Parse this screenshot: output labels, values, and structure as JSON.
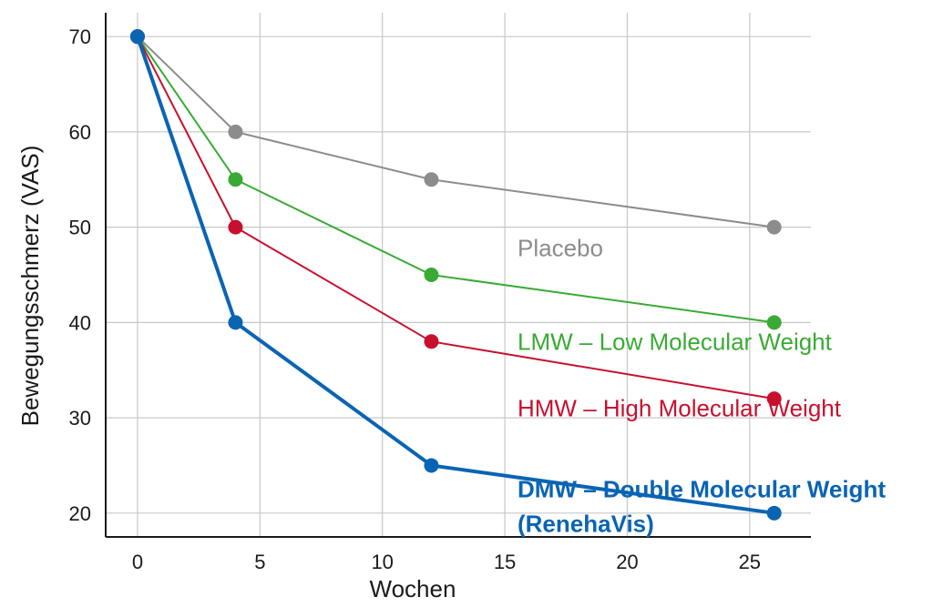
{
  "chart_data": {
    "type": "line",
    "title": "",
    "xlabel": "Wochen",
    "ylabel": "Bewegungsschmerz (VAS)",
    "xlim": [
      -1.3,
      27.5
    ],
    "ylim": [
      17.5,
      72.5
    ],
    "x_ticks": [
      0,
      5,
      10,
      15,
      20,
      25
    ],
    "y_ticks": [
      20,
      30,
      40,
      50,
      60,
      70
    ],
    "grid": true,
    "x": [
      0,
      4,
      12,
      26
    ],
    "series": [
      {
        "name": "Placebo",
        "label_lines": [
          "Placebo"
        ],
        "color": "#8c8c8c",
        "bold": false,
        "values": [
          70,
          60,
          55,
          50
        ]
      },
      {
        "name": "LMW – Low Molecular Weight",
        "label_lines": [
          "LMW – Low Molecular Weight"
        ],
        "color": "#3aaa35",
        "bold": false,
        "values": [
          70,
          55,
          45,
          40
        ]
      },
      {
        "name": "HMW – High Molecular Weight",
        "label_lines": [
          "HMW – High Molecular Weight"
        ],
        "color": "#c8102e",
        "bold": false,
        "values": [
          70,
          50,
          38,
          32
        ]
      },
      {
        "name": "DMW – Double Molecular Weight (RenehaVis)",
        "label_lines": [
          "DMW – Double Molecular Weight",
          "(RenehaVis)"
        ],
        "color": "#0a64b4",
        "bold": true,
        "values": [
          70,
          40,
          25,
          20
        ]
      }
    ]
  }
}
